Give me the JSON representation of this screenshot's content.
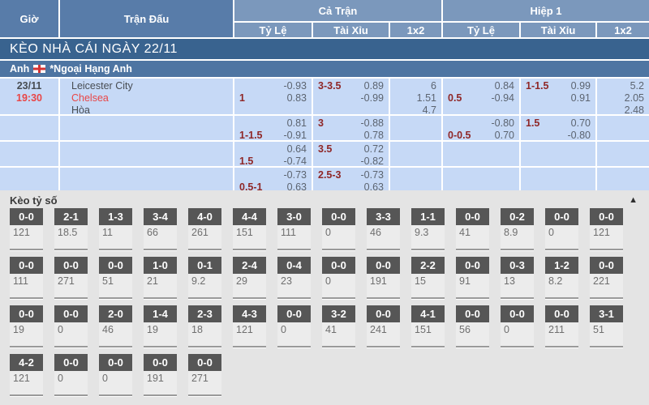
{
  "colors": {
    "header_dark": "#587ca9",
    "header_light": "#7b98bc",
    "banner_blue": "#39638f",
    "league_blue": "#4e75a2",
    "row_blue": "#c6d9f6",
    "handicap_maroon": "#8f2727",
    "accent_red": "#e94646",
    "odds_gray": "#5c6470",
    "section_gray": "#e4e4e4",
    "card_dark": "#565656"
  },
  "table": {
    "col_headers": {
      "time": "Giờ",
      "match": "Trận Đấu",
      "full_match": "Cả Trận",
      "first_half": "Hiệp 1",
      "handicap": "Tỷ Lệ",
      "over_under": "Tài Xỉu",
      "one_x_two": "1x2",
      "handicap2": "Tỷ Lệ",
      "over_under2": "Tài Xỉu",
      "one_x_two2": "1x2"
    },
    "banner": "KÈO NHÀ CÁI NGÀY 22/11",
    "league": {
      "country": "Anh",
      "flag_icon": "england-flag",
      "name": "*Ngoại Hạng Anh"
    },
    "match": {
      "date": "23/11",
      "time": "19:30",
      "home": "Leicester City",
      "away": "Chelsea",
      "draw_label": "Hòa"
    },
    "rows": [
      {
        "ft_hdp": {
          "line": "1",
          "top": "-0.93",
          "bottom": "0.83"
        },
        "ft_ou": {
          "line": "3-3.5",
          "top": "0.89",
          "bottom": "-0.99"
        },
        "ft_1x2": [
          "6",
          "1.51",
          "4.7"
        ],
        "h1_hdp": {
          "line": "0.5",
          "top": "0.84",
          "bottom": "-0.94"
        },
        "h1_ou": {
          "line": "1-1.5",
          "top": "0.99",
          "bottom": "0.91"
        },
        "h1_1x2": [
          "5.2",
          "2.05",
          "2.48"
        ]
      },
      {
        "ft_hdp": {
          "line": "1-1.5",
          "top": "0.81",
          "bottom": "-0.91"
        },
        "ft_ou": {
          "line": "3",
          "top": "-0.88",
          "bottom": "0.78"
        },
        "ft_1x2": [],
        "h1_hdp": {
          "line": "0-0.5",
          "top": "-0.80",
          "bottom": "0.70"
        },
        "h1_ou": {
          "line": "1.5",
          "top": "0.70",
          "bottom": "-0.80"
        },
        "h1_1x2": []
      },
      {
        "ft_hdp": {
          "line": "1.5",
          "top": "0.64",
          "bottom": "-0.74"
        },
        "ft_ou": {
          "line": "3.5",
          "top": "0.72",
          "bottom": "-0.82"
        },
        "ft_1x2": [],
        "h1_hdp": {
          "line": "",
          "top": "",
          "bottom": ""
        },
        "h1_ou": {
          "line": "",
          "top": "",
          "bottom": ""
        },
        "h1_1x2": []
      },
      {
        "ft_hdp": {
          "line": "0.5-1",
          "top": "-0.73",
          "bottom": "0.63"
        },
        "ft_ou": {
          "line": "2.5-3",
          "top": "-0.73",
          "bottom": "0.63"
        },
        "ft_1x2": [],
        "h1_hdp": {
          "line": "",
          "top": "",
          "bottom": ""
        },
        "h1_ou": {
          "line": "",
          "top": "",
          "bottom": ""
        },
        "h1_1x2": []
      }
    ]
  },
  "scores": {
    "title": "Kèo tỷ số",
    "collapse_icon": "▲",
    "rows": [
      [
        {
          "score": "0-0",
          "odds": "121"
        },
        {
          "score": "2-1",
          "odds": "18.5"
        },
        {
          "score": "1-3",
          "odds": "11"
        },
        {
          "score": "3-4",
          "odds": "66"
        },
        {
          "score": "4-0",
          "odds": "261"
        },
        {
          "score": "4-4",
          "odds": "151"
        },
        {
          "score": "3-0",
          "odds": "111"
        },
        {
          "score": "0-0",
          "odds": "0"
        },
        {
          "score": "3-3",
          "odds": "46"
        },
        {
          "score": "1-1",
          "odds": "9.3"
        },
        {
          "score": "0-0",
          "odds": "41"
        },
        {
          "score": "0-2",
          "odds": "8.9"
        },
        {
          "score": "0-0",
          "odds": "0"
        },
        {
          "score": "0-0",
          "odds": "121"
        }
      ],
      [
        {
          "score": "0-0",
          "odds": "111"
        },
        {
          "score": "0-0",
          "odds": "271"
        },
        {
          "score": "0-0",
          "odds": "51"
        },
        {
          "score": "1-0",
          "odds": "21"
        },
        {
          "score": "0-1",
          "odds": "9.2"
        },
        {
          "score": "2-4",
          "odds": "29"
        },
        {
          "score": "0-4",
          "odds": "23"
        },
        {
          "score": "0-0",
          "odds": "0"
        },
        {
          "score": "0-0",
          "odds": "191"
        },
        {
          "score": "2-2",
          "odds": "15"
        },
        {
          "score": "0-0",
          "odds": "91"
        },
        {
          "score": "0-3",
          "odds": "13"
        },
        {
          "score": "1-2",
          "odds": "8.2"
        },
        {
          "score": "0-0",
          "odds": "221"
        }
      ],
      [
        {
          "score": "0-0",
          "odds": "19"
        },
        {
          "score": "0-0",
          "odds": "0"
        },
        {
          "score": "2-0",
          "odds": "46"
        },
        {
          "score": "1-4",
          "odds": "19"
        },
        {
          "score": "2-3",
          "odds": "18"
        },
        {
          "score": "4-3",
          "odds": "121"
        },
        {
          "score": "0-0",
          "odds": "0"
        },
        {
          "score": "3-2",
          "odds": "41"
        },
        {
          "score": "0-0",
          "odds": "241"
        },
        {
          "score": "4-1",
          "odds": "151"
        },
        {
          "score": "0-0",
          "odds": "56"
        },
        {
          "score": "0-0",
          "odds": "0"
        },
        {
          "score": "0-0",
          "odds": "211"
        },
        {
          "score": "3-1",
          "odds": "51"
        }
      ],
      [
        {
          "score": "4-2",
          "odds": "121"
        },
        {
          "score": "0-0",
          "odds": "0"
        },
        {
          "score": "0-0",
          "odds": "0"
        },
        {
          "score": "0-0",
          "odds": "191"
        },
        {
          "score": "0-0",
          "odds": "271"
        }
      ]
    ]
  }
}
